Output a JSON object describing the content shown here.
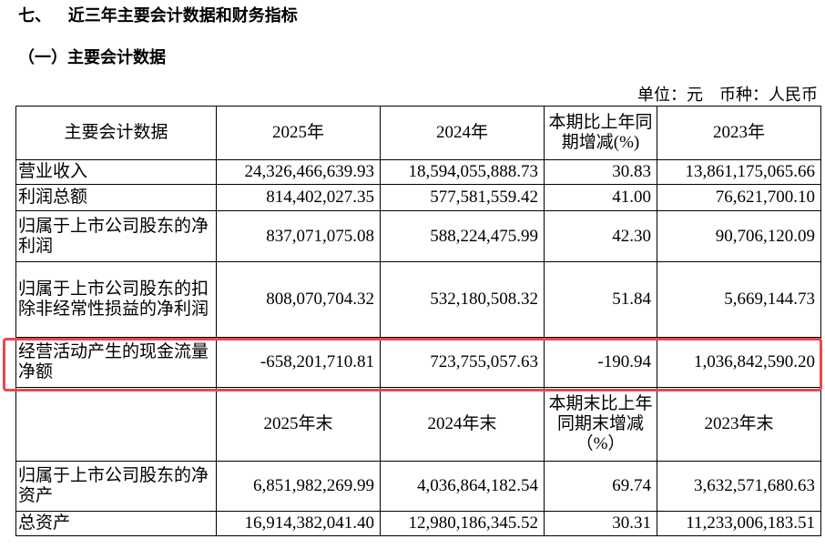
{
  "section_title": "七、   近三年主要会计数据和财务指标",
  "sub_title": "（一）主要会计数据",
  "unit_line": "单位：元    币种：人民币",
  "table1": {
    "headers": [
      "主要会计数据",
      "2025年",
      "2024年",
      "本期比上年同期增减(%)",
      "2023年"
    ],
    "rows": [
      {
        "label": "营业收入",
        "v2025": "24,326,466,639.93",
        "v2024": "18,594,055,888.73",
        "change": "30.83",
        "v2023": "13,861,175,065.66"
      },
      {
        "label": "利润总额",
        "v2025": "814,402,027.35",
        "v2024": "577,581,559.42",
        "change": "41.00",
        "v2023": "76,621,700.10"
      },
      {
        "label": "归属于上市公司股东的净利润",
        "v2025": "837,071,075.08",
        "v2024": "588,224,475.99",
        "change": "42.30",
        "v2023": "90,706,120.09"
      },
      {
        "label": "归属于上市公司股东的扣除非经常性损益的净利润",
        "v2025": "808,070,704.32",
        "v2024": "532,180,508.32",
        "change": "51.84",
        "v2023": "5,669,144.73"
      },
      {
        "label": "经营活动产生的现金流量净额",
        "v2025": "-658,201,710.81",
        "v2024": "723,755,057.63",
        "change": "-190.94",
        "v2023": "1,036,842,590.20"
      }
    ]
  },
  "table2": {
    "headers": [
      "",
      "2025年末",
      "2024年末",
      "本期末比上年同期末增减（%）",
      "2023年末"
    ],
    "rows": [
      {
        "label": "归属于上市公司股东的净资产",
        "v2025": "6,851,982,269.99",
        "v2024": "4,036,864,182.54",
        "change": "69.74",
        "v2023": "3,632,571,680.63"
      },
      {
        "label": "总资产",
        "v2025": "16,914,382,041.40",
        "v2024": "12,980,186,345.52",
        "change": "30.31",
        "v2023": "11,233,006,183.51"
      }
    ]
  },
  "highlight_color": "#e8474c"
}
